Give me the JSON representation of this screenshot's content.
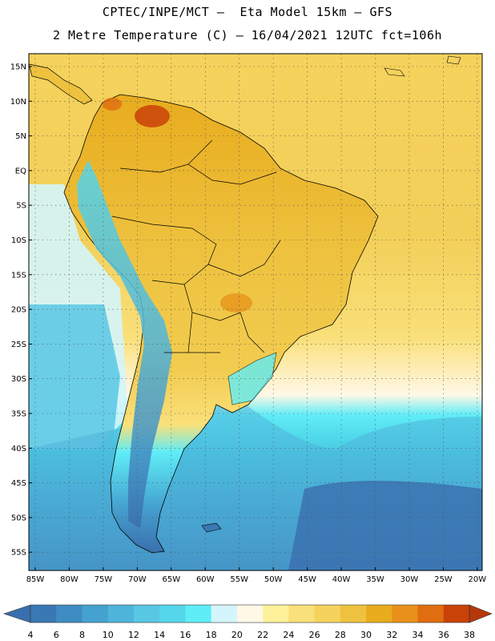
{
  "title_line1": "CPTEC/INPE/MCT –  Eta Model 15km – GFS",
  "title_line2": "2 Metre Temperature (C) – 16/04/2021 12UTC fct=106h",
  "latitude_labels": [
    "15N",
    "10N",
    "5N",
    "EQ",
    "5S",
    "10S",
    "15S",
    "20S",
    "25S",
    "30S",
    "35S",
    "40S",
    "45S",
    "50S",
    "55S"
  ],
  "longitude_labels": [
    "85W",
    "80W",
    "75W",
    "70W",
    "65W",
    "60W",
    "55W",
    "50W",
    "45W",
    "40W",
    "35W",
    "30W",
    "25W",
    "20W"
  ],
  "colorbar": {
    "labels": [
      "4",
      "6",
      "8",
      "10",
      "12",
      "14",
      "16",
      "18",
      "20",
      "22",
      "24",
      "26",
      "28",
      "30",
      "32",
      "34",
      "36",
      "38"
    ],
    "colors": [
      "#3a78b4",
      "#3f8cc2",
      "#45a1cf",
      "#4fb4da",
      "#58c7e4",
      "#55d6ea",
      "#5fedf7",
      "#d4f5fb",
      "#fff8e6",
      "#fdf29a",
      "#fae07a",
      "#f5d25c",
      "#eec23f",
      "#e8ac1e",
      "#e8901a",
      "#e06d10",
      "#c94208"
    ],
    "low_arrow_color": "#3a6fae",
    "high_arrow_color": "#b5380a"
  }
}
